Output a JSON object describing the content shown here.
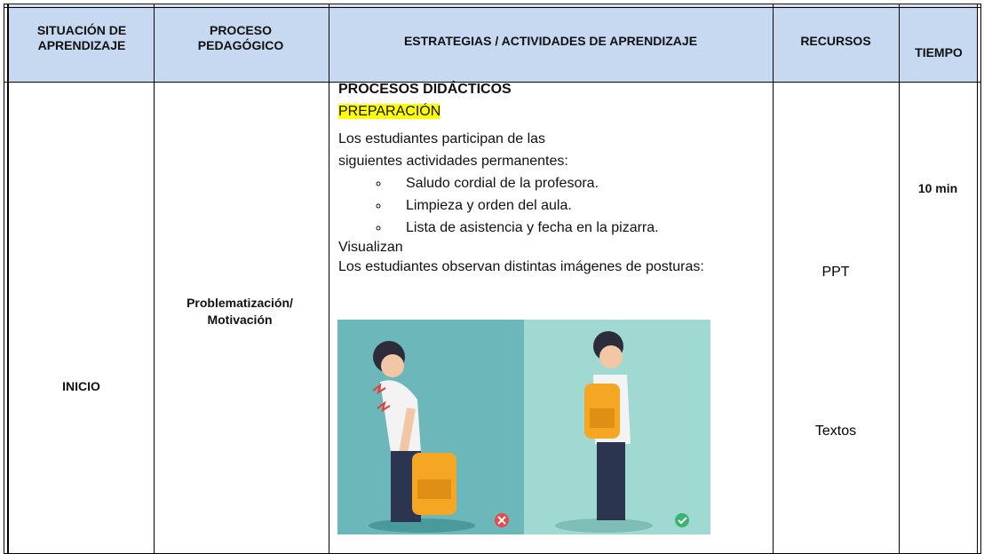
{
  "table": {
    "headers": [
      "SITUACIÓN DE APRENDIZAJE",
      "PROCESO PEDAGÓGICO",
      "ESTRATEGIAS / ACTIVIDADES DE APRENDIZAJE",
      "RECURSOS",
      "TIEMPO"
    ],
    "rows": [
      {
        "situacion": "INICIO",
        "proceso": "Problematización/ Motivación",
        "estrategias": {
          "title": "PROCESOS DIDÁCTICOS",
          "highlight": "PREPARACIÓN",
          "intro": "Los estudiantes participan de las siguientes actividades permanentes:",
          "items": [
            "Saludo cordial de la profesora.",
            "Limpieza y orden del aula.",
            "Lista de asistencia y fecha en la pizarra."
          ],
          "subtitle": "Visualizan",
          "text": "Los estudiantes observan distintas imágenes de posturas:"
        },
        "recursos": [
          "PPT",
          "Textos"
        ],
        "tiempo": "10 min"
      }
    ]
  }
}
